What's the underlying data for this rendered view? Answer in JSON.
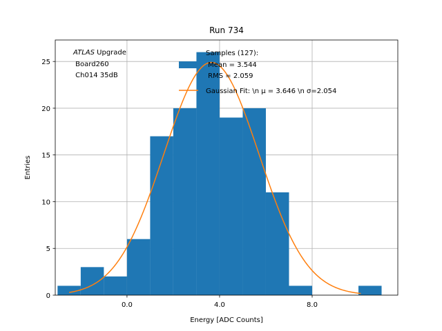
{
  "chart_data": {
    "type": "histogram",
    "title": "Run 734",
    "xlabel": "Energy [ADC Counts]",
    "ylabel": "Entries",
    "xlim": [
      -3.1,
      11.7
    ],
    "ylim": [
      0,
      27.3
    ],
    "xticks": [
      0.0,
      4.0,
      8.0
    ],
    "xtick_labels": [
      "0.0",
      "4.0",
      "8.0"
    ],
    "yticks": [
      0,
      5,
      10,
      15,
      20,
      25
    ],
    "ytick_labels": [
      "0",
      "5",
      "10",
      "15",
      "20",
      "25"
    ],
    "grid": true,
    "bin_edges": [
      -3,
      -2,
      -1,
      0,
      1,
      2,
      3,
      4,
      5,
      6,
      7,
      8,
      9,
      10,
      11
    ],
    "counts": [
      1,
      3,
      2,
      6,
      17,
      20,
      26,
      19,
      20,
      11,
      1,
      0,
      0,
      1
    ],
    "bar_color": "#1f77b4",
    "fit": {
      "name": "Gaussian Fit",
      "mu": 3.646,
      "sigma": 2.054,
      "amplitude": 24.9,
      "x_range": [
        -2.5,
        10.1
      ],
      "color": "#ff7f0e"
    },
    "annotation": {
      "lines": [
        {
          "italic": "ATLAS",
          "rest": " Upgrade"
        },
        {
          "text": " Board260"
        },
        {
          "text": " Ch014 35dB"
        }
      ]
    },
    "legend": {
      "placement": "top-right",
      "entries": [
        {
          "kind": "patch",
          "lines": [
            "Samples (127):",
            " Mean = 3.544",
            " RMS = 2.059"
          ]
        },
        {
          "kind": "line",
          "text": "Gaussian Fit: \\n μ = 3.646 \\n σ=2.054"
        }
      ]
    }
  }
}
